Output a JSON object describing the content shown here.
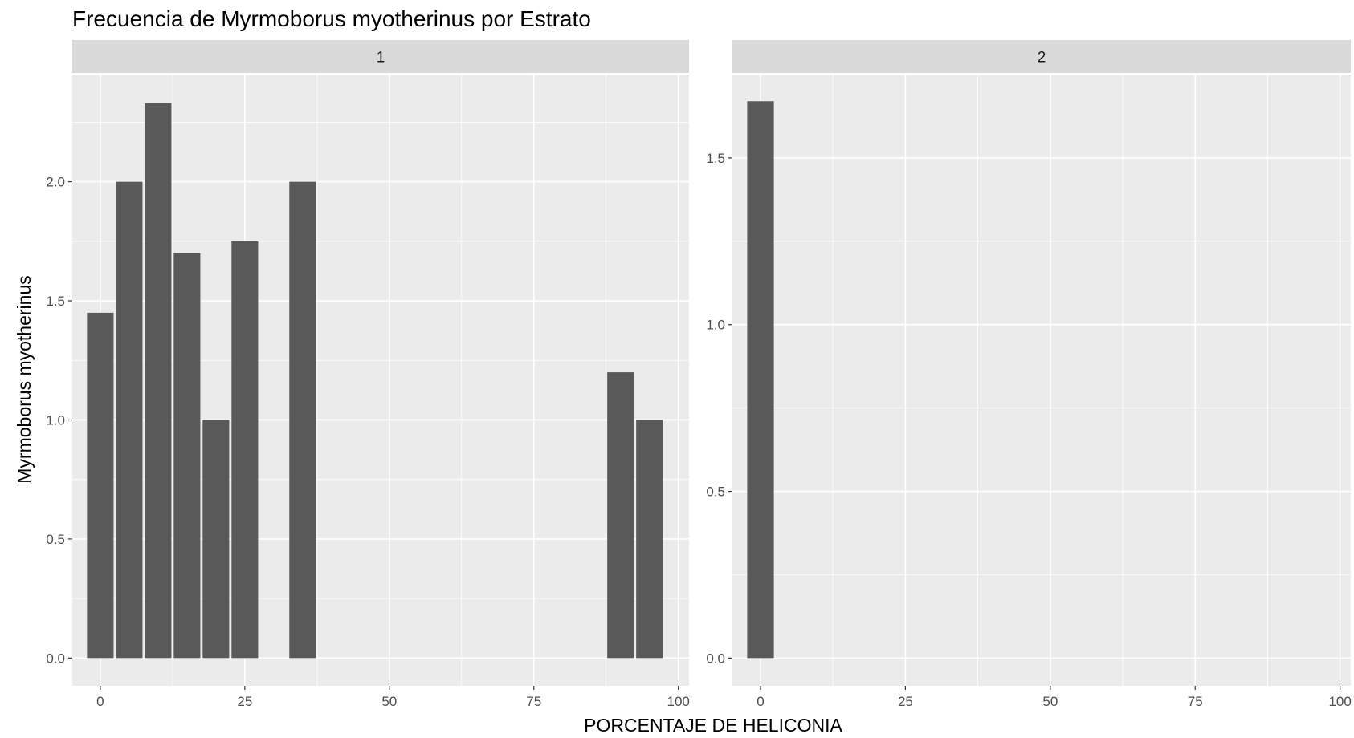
{
  "chart_data": {
    "type": "bar",
    "title": "Frecuencia de Myrmoborus myotherinus por Estrato",
    "xlabel": "PORCENTAJE DE HELICONIA",
    "ylabel": "Myrmoborus myotherinus",
    "grid": true,
    "bar_color": "#595959",
    "panel_background": "#ebebeb",
    "strip_background": "#d9d9d9",
    "facets": [
      {
        "label": "1",
        "xlim": [
          -4.85,
          101.85
        ],
        "ylim": [
          -0.1167,
          2.45
        ],
        "x_ticks": [
          0,
          25,
          50,
          75,
          100
        ],
        "x_tick_labels": [
          "0",
          "25",
          "50",
          "75",
          "100"
        ],
        "y_ticks": [
          0.0,
          0.5,
          1.0,
          1.5,
          2.0
        ],
        "y_tick_labels": [
          "0.0",
          "0.5",
          "1.0",
          "1.5",
          "2.0"
        ],
        "bar_width": 4.6,
        "x": [
          0,
          5,
          10,
          15,
          20,
          25,
          35,
          90,
          95
        ],
        "values": [
          1.45,
          2.0,
          2.33,
          1.7,
          1.0,
          1.75,
          2.0,
          1.2,
          1.0
        ]
      },
      {
        "label": "2",
        "xlim": [
          -4.85,
          101.85
        ],
        "ylim": [
          -0.0833,
          1.75
        ],
        "x_ticks": [
          0,
          25,
          50,
          75,
          100
        ],
        "x_tick_labels": [
          "0",
          "25",
          "50",
          "75",
          "100"
        ],
        "y_ticks": [
          0.0,
          0.5,
          1.0,
          1.5
        ],
        "y_tick_labels": [
          "0.0",
          "0.5",
          "1.0",
          "1.5"
        ],
        "bar_width": 4.6,
        "x": [
          0
        ],
        "values": [
          1.67
        ]
      }
    ]
  }
}
